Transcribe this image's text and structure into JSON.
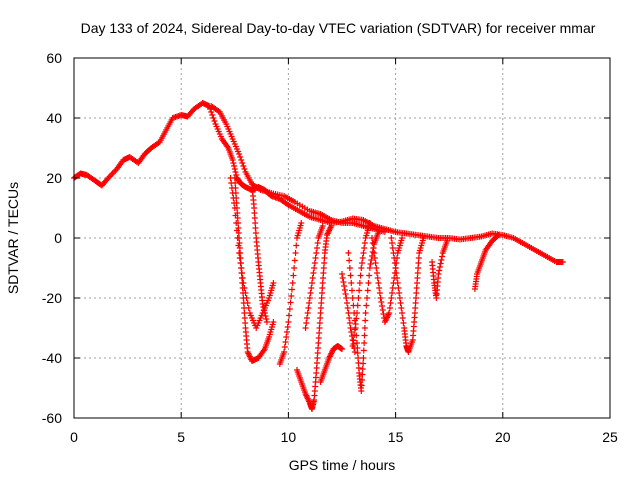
{
  "chart_data": {
    "type": "scatter",
    "title": "Day 133 of 2024, Sidereal Day-to-day VTEC variation (SDTVAR) for receiver mmar",
    "xlabel": "GPS time / hours",
    "ylabel": "SDTVAR / TECUs",
    "xlim": [
      0,
      25
    ],
    "ylim": [
      -60,
      60
    ],
    "xticks": [
      "0",
      "5",
      "10",
      "15",
      "20",
      "25"
    ],
    "yticks": [
      "60",
      "40",
      "20",
      "0",
      "-20",
      "-40",
      "-60"
    ],
    "xtick_values": [
      0,
      5,
      10,
      15,
      20,
      25
    ],
    "ytick_values": [
      60,
      40,
      20,
      0,
      -20,
      -40,
      -60
    ],
    "grid": true,
    "marker": "+",
    "series": [
      {
        "name": "SDTVAR",
        "color": "#ff0000",
        "segments": [
          {
            "points": [
              [
                0,
                20
              ],
              [
                0.3,
                21.5
              ],
              [
                0.6,
                21
              ],
              [
                1.0,
                19
              ],
              [
                1.3,
                17.5
              ],
              [
                1.6,
                20
              ],
              [
                2.0,
                23
              ],
              [
                2.3,
                26
              ],
              [
                2.6,
                27
              ],
              [
                3.0,
                25
              ],
              [
                3.3,
                28
              ],
              [
                3.6,
                30
              ],
              [
                4.0,
                32
              ],
              [
                4.3,
                36
              ],
              [
                4.6,
                40
              ],
              [
                5.0,
                41
              ],
              [
                5.3,
                40.5
              ],
              [
                5.6,
                43
              ],
              [
                6.0,
                45
              ],
              [
                6.3,
                44
              ],
              [
                6.6,
                38
              ],
              [
                6.9,
                33
              ],
              [
                7.2,
                30
              ],
              [
                7.4,
                26
              ],
              [
                7.6,
                20
              ],
              [
                7.8,
                18
              ],
              [
                8.0,
                17
              ],
              [
                8.3,
                16
              ],
              [
                8.6,
                17
              ],
              [
                8.9,
                16
              ],
              [
                9.2,
                14
              ],
              [
                9.6,
                13
              ],
              [
                10.0,
                11
              ],
              [
                10.5,
                9
              ],
              [
                11.0,
                7
              ],
              [
                11.5,
                6
              ],
              [
                12.0,
                5
              ],
              [
                12.5,
                5.5
              ],
              [
                13.0,
                6.5
              ],
              [
                13.5,
                6
              ],
              [
                14.0,
                4
              ],
              [
                14.5,
                3
              ],
              [
                15.0,
                2
              ],
              [
                15.5,
                1.5
              ],
              [
                16.0,
                1
              ],
              [
                16.5,
                0.5
              ],
              [
                17.0,
                0
              ],
              [
                17.5,
                0
              ],
              [
                18.0,
                -0.5
              ],
              [
                18.5,
                0
              ],
              [
                19.0,
                0.5
              ],
              [
                19.5,
                1.5
              ],
              [
                20.0,
                1
              ],
              [
                20.5,
                0
              ],
              [
                21.0,
                -2
              ],
              [
                21.5,
                -4
              ],
              [
                22.0,
                -6
              ],
              [
                22.5,
                -8
              ],
              [
                22.8,
                -8
              ]
            ]
          },
          {
            "points": [
              [
                6.4,
                44
              ],
              [
                6.8,
                42
              ],
              [
                7.1,
                38
              ],
              [
                7.4,
                33
              ],
              [
                7.7,
                28
              ],
              [
                8.0,
                22
              ],
              [
                8.3,
                18
              ],
              [
                8.7,
                16
              ],
              [
                9.2,
                15
              ],
              [
                9.8,
                14
              ],
              [
                10.3,
                12
              ],
              [
                11.0,
                9
              ],
              [
                11.5,
                8
              ],
              [
                12.0,
                6
              ],
              [
                12.5,
                5
              ],
              [
                13.0,
                5
              ],
              [
                13.5,
                4
              ],
              [
                14.0,
                3
              ],
              [
                14.5,
                2
              ]
            ]
          },
          {
            "points": [
              [
                7.5,
                20
              ],
              [
                7.6,
                10
              ],
              [
                7.7,
                0
              ],
              [
                7.8,
                -10
              ],
              [
                7.9,
                -20
              ],
              [
                8.0,
                -30
              ],
              [
                8.1,
                -38
              ],
              [
                8.3,
                -41
              ],
              [
                8.6,
                -40
              ],
              [
                8.9,
                -37
              ],
              [
                9.1,
                -33
              ],
              [
                9.3,
                -28
              ]
            ]
          },
          {
            "points": [
              [
                7.3,
                20
              ],
              [
                7.5,
                10
              ],
              [
                7.7,
                -5
              ],
              [
                7.9,
                -15
              ],
              [
                8.2,
                -25
              ],
              [
                8.5,
                -30
              ],
              [
                8.8,
                -25
              ],
              [
                9.1,
                -20
              ],
              [
                9.3,
                -15
              ]
            ]
          },
          {
            "points": [
              [
                8.3,
                18
              ],
              [
                8.4,
                10
              ],
              [
                8.5,
                0
              ],
              [
                8.6,
                -8
              ],
              [
                8.7,
                -15
              ],
              [
                8.8,
                -22
              ],
              [
                9.0,
                -28
              ]
            ]
          },
          {
            "points": [
              [
                9.6,
                -42
              ],
              [
                9.8,
                -38
              ],
              [
                10.0,
                -28
              ],
              [
                10.2,
                -15
              ],
              [
                10.4,
                0
              ],
              [
                10.6,
                5
              ]
            ]
          },
          {
            "points": [
              [
                10.4,
                -44
              ],
              [
                10.6,
                -48
              ],
              [
                10.8,
                -52
              ],
              [
                11.0,
                -55
              ],
              [
                11.1,
                -57
              ],
              [
                11.2,
                -54
              ],
              [
                11.3,
                -45
              ],
              [
                11.4,
                -35
              ],
              [
                11.5,
                -25
              ],
              [
                11.6,
                -15
              ],
              [
                11.7,
                -5
              ],
              [
                11.8,
                1
              ],
              [
                12.0,
                4
              ]
            ]
          },
          {
            "points": [
              [
                11.5,
                -48
              ],
              [
                11.7,
                -44
              ],
              [
                11.9,
                -40
              ],
              [
                12.1,
                -37
              ],
              [
                12.3,
                -36
              ],
              [
                12.5,
                -37
              ]
            ]
          },
          {
            "points": [
              [
                10.8,
                -30
              ],
              [
                11.0,
                -20
              ],
              [
                11.2,
                -10
              ],
              [
                11.4,
                0
              ],
              [
                11.6,
                4
              ]
            ]
          },
          {
            "points": [
              [
                12.5,
                -12
              ],
              [
                12.7,
                -20
              ],
              [
                12.9,
                -30
              ],
              [
                13.1,
                -38
              ]
            ]
          },
          {
            "points": [
              [
                13.0,
                -36
              ],
              [
                13.2,
                -25
              ],
              [
                13.4,
                -10
              ],
              [
                13.6,
                0
              ],
              [
                13.8,
                5
              ]
            ]
          },
          {
            "points": [
              [
                12.8,
                -5
              ],
              [
                13.0,
                -20
              ],
              [
                13.2,
                -35
              ],
              [
                13.3,
                -45
              ],
              [
                13.4,
                -51
              ],
              [
                13.5,
                -40
              ],
              [
                13.6,
                -25
              ],
              [
                13.8,
                -10
              ],
              [
                14.0,
                -2
              ],
              [
                14.2,
                2
              ]
            ]
          },
          {
            "points": [
              [
                13.9,
                0
              ],
              [
                14.1,
                -10
              ],
              [
                14.3,
                -20
              ],
              [
                14.5,
                -28
              ],
              [
                14.7,
                -25
              ],
              [
                14.9,
                -15
              ],
              [
                15.1,
                -5
              ],
              [
                15.3,
                0
              ]
            ]
          },
          {
            "points": [
              [
                14.8,
                0
              ],
              [
                15.0,
                -10
              ],
              [
                15.2,
                -20
              ],
              [
                15.4,
                -30
              ],
              [
                15.5,
                -36
              ],
              [
                15.6,
                -38
              ],
              [
                15.8,
                -34
              ],
              [
                15.9,
                -25
              ],
              [
                16.0,
                -15
              ],
              [
                16.1,
                -5
              ],
              [
                16.3,
                0
              ]
            ]
          },
          {
            "points": [
              [
                16.7,
                -8
              ],
              [
                16.8,
                -15
              ],
              [
                16.9,
                -20
              ],
              [
                17.0,
                -12
              ],
              [
                17.2,
                -5
              ],
              [
                17.4,
                -1
              ]
            ]
          },
          {
            "points": [
              [
                18.7,
                -17
              ],
              [
                18.8,
                -12
              ],
              [
                19.0,
                -8
              ],
              [
                19.2,
                -4
              ],
              [
                19.5,
                -1
              ],
              [
                19.8,
                1
              ]
            ]
          }
        ]
      }
    ]
  }
}
